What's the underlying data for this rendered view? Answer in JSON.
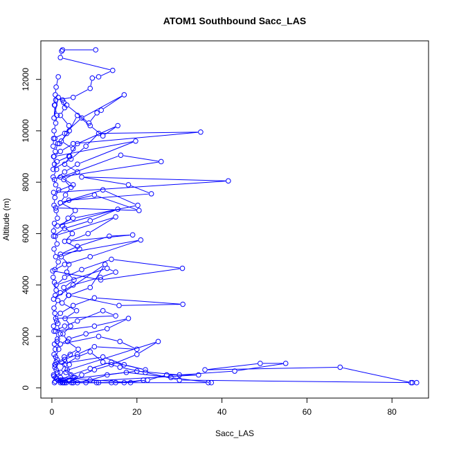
{
  "chart_data": {
    "type": "line",
    "title": "ATOM1 Southbound Sacc_LAS",
    "xlabel": "Sacc_LAS",
    "ylabel": "Altitude (m)",
    "xlim": [
      -2.6,
      88.6
    ],
    "ylim": [
      -400,
      13500
    ],
    "xticks": [
      0,
      20,
      40,
      60,
      80
    ],
    "yticks": [
      0,
      2000,
      4000,
      6000,
      8000,
      10000,
      12000
    ],
    "color": "#0000ff",
    "marker": "open-circle",
    "grid": false,
    "legend": "none",
    "series": [
      {
        "x": [
          10.3,
          2.5,
          2.3,
          2.0,
          14.3,
          11.0,
          9.5,
          9.0,
          5.0,
          0.9,
          0.7,
          0.5,
          1.5,
          2.8,
          3.5,
          8.7,
          10.6,
          11.6,
          17.0,
          7.0,
          3.0,
          0.4,
          0.3,
          1.8,
          4.1,
          6.0,
          9.0,
          12.0,
          15.5,
          6.0,
          4.0,
          1.2,
          0.3,
          4.5,
          8.0,
          11.0,
          35.0,
          5.0,
          2.0,
          0.5,
          19.7,
          6.0,
          3.0,
          0.6,
          16.2,
          25.7,
          2.0,
          5.0,
          0.4,
          41.5,
          7.0,
          18.0,
          23.4,
          4.0,
          0.9,
          20.5,
          10.0,
          2.0,
          12.0,
          20.2,
          5.0,
          1.3,
          15.5,
          9.0,
          3.0,
          0.4,
          15.0,
          8.5,
          4.0,
          19.0,
          13.5,
          6.0,
          2.0,
          20.9,
          9.0,
          3.0,
          0.2,
          11.5,
          30.7,
          14.0,
          7.0,
          3.0,
          1.0,
          13.0,
          15.0,
          11.4,
          5.0,
          2.0,
          0.4,
          12.5,
          9.0,
          4.0,
          15.8,
          30.8,
          10.0,
          5.0,
          2.0,
          0.9,
          15.0,
          12.0,
          6.0,
          3.0,
          0.5,
          10.0,
          18.0,
          13.0,
          8.0,
          4.0,
          2.0,
          11.0,
          16.0,
          20.0,
          10.0,
          6.0,
          3.0,
          0.8,
          12.0,
          17.0,
          22.0,
          14.0,
          9.0,
          4.5,
          2.0,
          20.0,
          30.0,
          43.0,
          55.0,
          49.0,
          36.0,
          67.8,
          84.5,
          85.8,
          84.8,
          30.0,
          22.0,
          16.0,
          12.0,
          9.0,
          6.0,
          3.0,
          2.0,
          25.0,
          20.0,
          14.0,
          10.0,
          7.0,
          4.0,
          2.5,
          36.8,
          37.5,
          28.0,
          17.5,
          13.0,
          9.0,
          5.0,
          2.0,
          34.5,
          27.0,
          22.5,
          15.0,
          11.0,
          8.0,
          5.0,
          3.0,
          2.3,
          2.6,
          2.0,
          18.5,
          21.5,
          17.0,
          14.0,
          10.5,
          6.0,
          3.0
        ],
        "y": [
          13150,
          13150,
          13100,
          12850,
          12350,
          12100,
          12050,
          11650,
          11300,
          11200,
          11000,
          10500,
          11300,
          11100,
          11000,
          10300,
          10700,
          10800,
          11400,
          10500,
          9900,
          9700,
          9400,
          9500,
          10000,
          10600,
          10200,
          9800,
          10200,
          9500,
          9000,
          8800,
          8500,
          8900,
          9400,
          9900,
          9950,
          9500,
          9200,
          9000,
          9600,
          8700,
          8400,
          8100,
          9050,
          8800,
          8200,
          7900,
          7600,
          8050,
          8200,
          7900,
          7550,
          7300,
          7000,
          6900,
          7500,
          7200,
          7700,
          7100,
          6600,
          6300,
          6950,
          6500,
          6200,
          5900,
          6650,
          6000,
          5700,
          5950,
          5900,
          5500,
          5200,
          5750,
          5100,
          4800,
          4550,
          4200,
          4650,
          5000,
          4600,
          4300,
          4000,
          4650,
          4500,
          4300,
          4000,
          3700,
          3450,
          4800,
          3900,
          3600,
          3200,
          3250,
          3500,
          3200,
          2900,
          2700,
          2800,
          3000,
          2600,
          2400,
          2200,
          2400,
          2700,
          2300,
          2100,
          1900,
          1700,
          2000,
          1800,
          1500,
          1600,
          1300,
          1100,
          900,
          1200,
          900,
          700,
          1000,
          750,
          500,
          300,
          650,
          500,
          650,
          950,
          950,
          700,
          800,
          200,
          200,
          200,
          300,
          600,
          800,
          1000,
          1400,
          1200,
          900,
          600,
          1800,
          1300,
          900,
          700,
          500,
          300,
          200,
          200,
          200,
          400,
          600,
          500,
          300,
          200,
          200,
          500,
          500,
          300,
          200,
          200,
          200,
          200,
          200,
          300,
          200,
          400,
          200,
          300,
          200,
          200,
          200,
          200,
          200
        ]
      },
      {
        "x": [
          1.5,
          1.0,
          0.8,
          0.6,
          1.2,
          0.9,
          0.5,
          0.7,
          1.4,
          0.8,
          0.4,
          0.6,
          1.1,
          0.3,
          0.9,
          1.6,
          0.7,
          0.5,
          1.0,
          1.3,
          0.6,
          0.4,
          0.8,
          1.2,
          0.5,
          0.9,
          1.5,
          0.7,
          0.3,
          0.6,
          1.0,
          0.8,
          1.4,
          0.5,
          0.7,
          1.1,
          0.4,
          0.9,
          1.3,
          0.6,
          0.8,
          0.5,
          1.2,
          0.7,
          1.0,
          0.4,
          0.9,
          1.5,
          0.6,
          0.8,
          1.1,
          0.5,
          1.3,
          0.7,
          1.0,
          0.9,
          1.6,
          1.2,
          2.0,
          1.4
        ],
        "y": [
          12100,
          11700,
          11400,
          11000,
          10600,
          10300,
          10000,
          9700,
          9500,
          9200,
          9000,
          8700,
          8500,
          8200,
          7900,
          7700,
          7400,
          7100,
          6900,
          6600,
          6400,
          6100,
          5900,
          5600,
          5400,
          5100,
          4900,
          4600,
          4300,
          4100,
          3800,
          3600,
          3400,
          3100,
          2900,
          2600,
          2400,
          2200,
          1900,
          1700,
          1500,
          1300,
          1100,
          900,
          700,
          500,
          400,
          300,
          200,
          250,
          350,
          450,
          600,
          800,
          1000,
          1200,
          1500,
          1800,
          2100,
          2500
        ]
      },
      {
        "x": [
          2.5,
          3.0,
          2.0,
          4.0,
          3.5,
          2.2,
          5.0,
          4.2,
          3.0,
          6.0,
          2.8,
          4.5,
          3.2,
          2.0,
          5.5,
          3.8,
          2.5,
          4.8,
          3.0,
          6.5,
          2.2,
          4.0,
          3.5,
          5.2,
          2.8,
          3.9,
          2.4,
          5.8,
          3.1,
          4.4,
          2.6,
          3.7,
          6.2,
          2.9,
          4.1,
          3.3,
          5.0,
          2.7,
          4.6,
          3.4,
          2.1,
          5.4,
          3.6,
          2.3,
          4.3
        ],
        "y": [
          11200,
          10900,
          10600,
          10200,
          9900,
          9600,
          9300,
          9000,
          8700,
          8400,
          8100,
          7800,
          7500,
          7200,
          6900,
          6600,
          6300,
          6000,
          5700,
          5400,
          5100,
          4800,
          4500,
          4200,
          3900,
          3600,
          3300,
          3000,
          2700,
          2400,
          2100,
          1800,
          1500,
          1200,
          900,
          600,
          400,
          300,
          200,
          200,
          250,
          400,
          700,
          1000,
          1300
        ]
      }
    ]
  }
}
